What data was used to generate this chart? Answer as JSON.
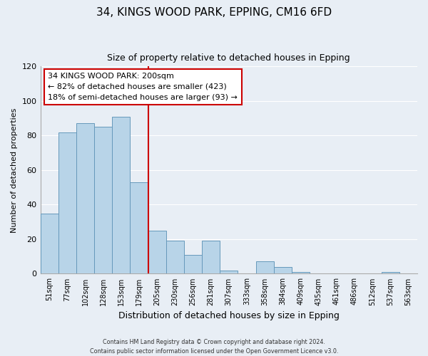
{
  "title": "34, KINGS WOOD PARK, EPPING, CM16 6FD",
  "subtitle": "Size of property relative to detached houses in Epping",
  "xlabel": "Distribution of detached houses by size in Epping",
  "ylabel": "Number of detached properties",
  "bar_labels": [
    "51sqm",
    "77sqm",
    "102sqm",
    "128sqm",
    "153sqm",
    "179sqm",
    "205sqm",
    "230sqm",
    "256sqm",
    "281sqm",
    "307sqm",
    "333sqm",
    "358sqm",
    "384sqm",
    "409sqm",
    "435sqm",
    "461sqm",
    "486sqm",
    "512sqm",
    "537sqm",
    "563sqm"
  ],
  "bar_values": [
    35,
    82,
    87,
    85,
    91,
    53,
    25,
    19,
    11,
    19,
    2,
    0,
    7,
    4,
    1,
    0,
    0,
    0,
    0,
    1,
    0
  ],
  "bar_color": "#b8d4e8",
  "bar_edge_color": "#6699bb",
  "reference_line_label": "205sqm",
  "reference_line_color": "#cc0000",
  "annotation_text": "34 KINGS WOOD PARK: 200sqm\n← 82% of detached houses are smaller (423)\n18% of semi-detached houses are larger (93) →",
  "annotation_box_color": "#ffffff",
  "annotation_box_edge": "#cc0000",
  "ylim": [
    0,
    120
  ],
  "yticks": [
    0,
    20,
    40,
    60,
    80,
    100,
    120
  ],
  "footer_line1": "Contains HM Land Registry data © Crown copyright and database right 2024.",
  "footer_line2": "Contains public sector information licensed under the Open Government Licence v3.0.",
  "background_color": "#e8eef5",
  "grid_color": "#ffffff"
}
